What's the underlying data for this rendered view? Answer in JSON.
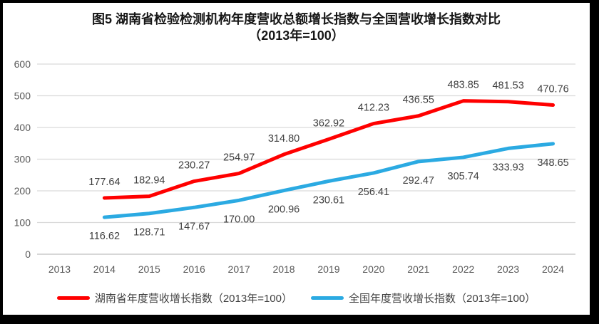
{
  "chart_data": {
    "type": "line",
    "title": "图5 湖南省检验检测机构年度营收总额增长指数与全国营收增长指数对比",
    "subtitle": "（2013年=100）",
    "categories": [
      "2013",
      "2014",
      "2015",
      "2016",
      "2017",
      "2018",
      "2019",
      "2020",
      "2021",
      "2022",
      "2023",
      "2024"
    ],
    "series": [
      {
        "name": "湖南省年度营收增长指数（2013年=100）",
        "color": "#FF0000",
        "start_index": 1,
        "values": [
          177.64,
          182.94,
          230.27,
          254.97,
          314.8,
          362.92,
          412.23,
          436.55,
          483.85,
          481.53,
          470.76
        ],
        "value_labels": [
          "177.64",
          "182.94",
          "230.27",
          "254.97",
          "314.80",
          "362.92",
          "412.23",
          "436.55",
          "483.85",
          "481.53",
          "470.76"
        ],
        "label_position": "above"
      },
      {
        "name": "全国年度营收增长指数（2013年=100）",
        "color": "#2BAAE2",
        "start_index": 1,
        "values": [
          116.62,
          128.71,
          147.67,
          170.0,
          200.96,
          230.61,
          256.41,
          292.47,
          305.74,
          333.93,
          348.65
        ],
        "value_labels": [
          "116.62",
          "128.71",
          "147.67",
          "170.00",
          "200.96",
          "230.61",
          "256.41",
          "292.47",
          "305.74",
          "333.93",
          "348.65"
        ],
        "label_position": "below"
      }
    ],
    "y_axis": {
      "min": 0,
      "max": 600,
      "step": 100,
      "tick_labels": [
        "0",
        "100",
        "200",
        "300",
        "400",
        "500",
        "600"
      ]
    },
    "grid": true,
    "legend_position": "bottom",
    "colors": {
      "gridline": "#D9D9D9",
      "axis_line": "#BFBFBF",
      "tick_text": "#595959",
      "data_label_text": "#404040",
      "frame_border": "#000000"
    }
  }
}
